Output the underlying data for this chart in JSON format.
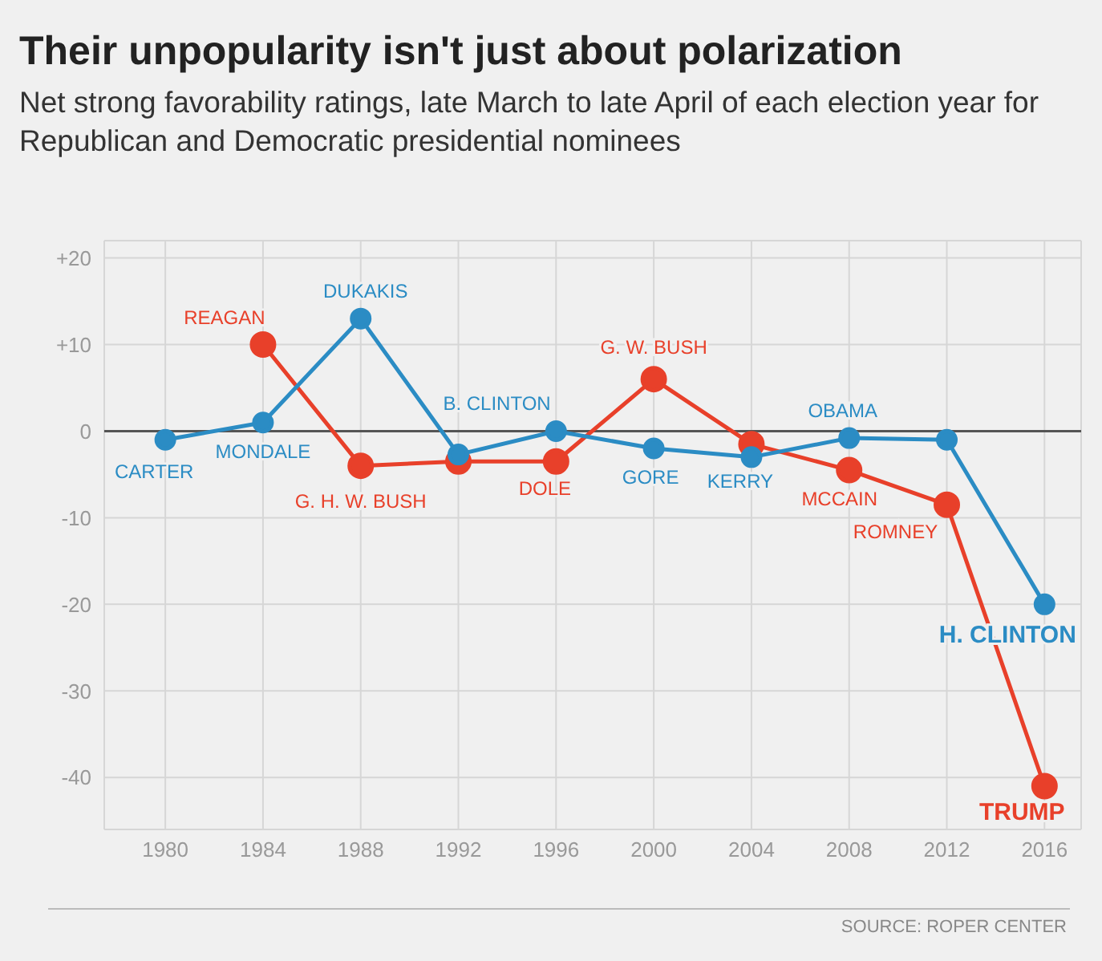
{
  "chart_data": {
    "type": "line",
    "title": "Their unpopularity isn't just about polarization",
    "subtitle": "Net strong favorability ratings, late March to late April of each election year for Republican and Democratic presidential nominees",
    "x": [
      1980,
      1984,
      1988,
      1992,
      1996,
      2000,
      2004,
      2008,
      2012,
      2016
    ],
    "series": [
      {
        "color": "#2b8cc4",
        "values": [
          -1,
          1,
          13,
          -2.7,
          0,
          -2,
          -3,
          -0.8,
          -1,
          -20
        ]
      },
      {
        "color": "#e8402a",
        "values": [
          null,
          10,
          -4,
          -3.5,
          -3.5,
          6,
          -1.5,
          -4.5,
          -8.5,
          -41
        ]
      }
    ],
    "xlim": [
      1977.5,
      2017.5
    ],
    "xticks": [
      1980,
      1984,
      1988,
      1992,
      1996,
      2000,
      2004,
      2008,
      2012,
      2016
    ],
    "ylim": [
      -46,
      22
    ],
    "yticks": [
      {
        "value": 20,
        "label": "+20"
      },
      {
        "value": 10,
        "label": "+10"
      },
      0,
      -10,
      -20,
      -30,
      -40
    ],
    "grid": true,
    "marker": "circle",
    "line_style": "solid",
    "ref_lines": [
      {
        "axis": "y",
        "value": 0,
        "color": "#555555"
      }
    ],
    "annotations": [
      {
        "text": "CARTER",
        "x": 1980,
        "y": -1
      },
      {
        "text": "REAGAN",
        "x": 1984,
        "y": 10
      },
      {
        "text": "MONDALE",
        "x": 1984,
        "y": 1
      },
      {
        "text": "DUKAKIS",
        "x": 1988,
        "y": 13
      },
      {
        "text": "G. H. W. BUSH",
        "x": 1988,
        "y": -4
      },
      {
        "text": "B. CLINTON",
        "x": 1992,
        "y": -2.7
      },
      {
        "text": "DOLE",
        "x": 1996,
        "y": -3.5
      },
      {
        "text": "G. W. BUSH",
        "x": 2000,
        "y": 6
      },
      {
        "text": "GORE",
        "x": 2000,
        "y": -2
      },
      {
        "text": "KERRY",
        "x": 2004,
        "y": -3
      },
      {
        "text": "OBAMA",
        "x": 2008,
        "y": -0.8
      },
      {
        "text": "MCCAIN",
        "x": 2008,
        "y": -4.5
      },
      {
        "text": "ROMNEY",
        "x": 2012,
        "y": -8.5
      },
      {
        "text": "H. CLINTON",
        "x": 2016,
        "y": -20
      },
      {
        "text": "TRUMP",
        "x": 2016,
        "y": -41
      },
      "SOURCE: ROPER CENTER"
    ]
  }
}
